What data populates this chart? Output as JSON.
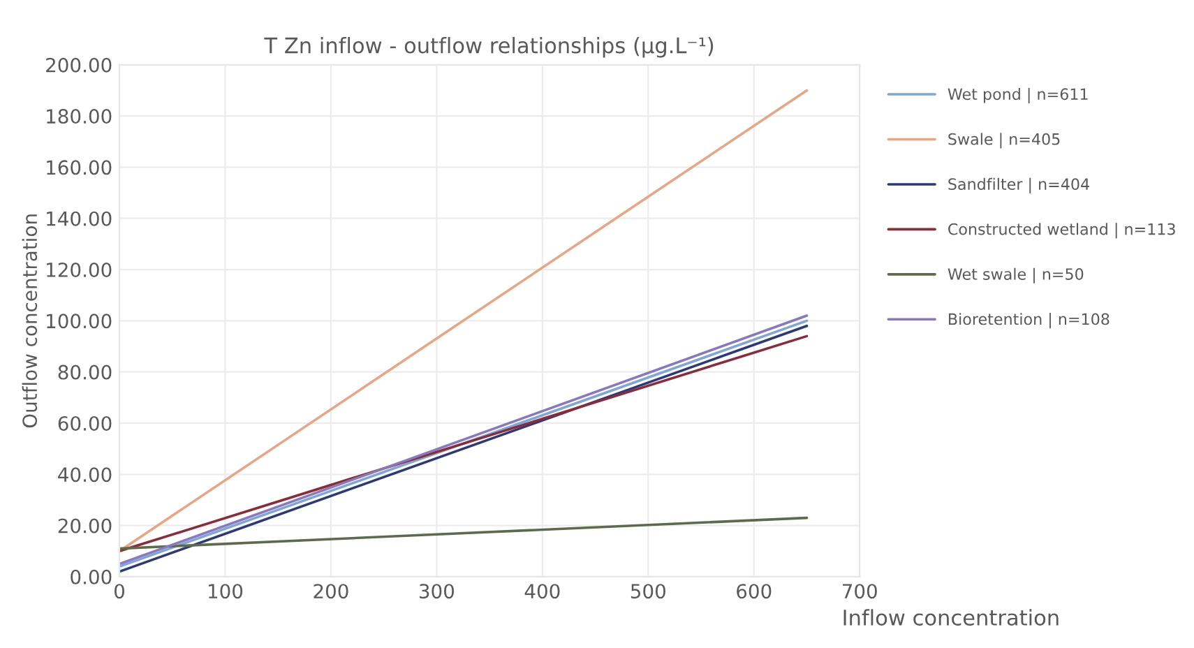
{
  "chart_data": {
    "type": "line",
    "title": "T Zn inflow - outflow relationships (µg.L⁻¹)",
    "xlabel": "Inflow concentration",
    "ylabel": "Outflow concentration",
    "xlim": [
      0,
      700
    ],
    "xticks": [
      0,
      100,
      200,
      300,
      400,
      500,
      600,
      700
    ],
    "ylim": [
      0,
      200
    ],
    "yticks": [
      {
        "value": 0,
        "label": "0.00"
      },
      {
        "value": 20,
        "label": "20.00"
      },
      {
        "value": 40,
        "label": "40.00"
      },
      {
        "value": 60,
        "label": "60.00"
      },
      {
        "value": 80,
        "label": "80.00"
      },
      {
        "value": 100,
        "label": "100.00"
      },
      {
        "value": 120,
        "label": "120.00"
      },
      {
        "value": 140,
        "label": "140.00"
      },
      {
        "value": 160,
        "label": "160.00"
      },
      {
        "value": 180,
        "label": "180.00"
      },
      {
        "value": 200,
        "label": "200.00"
      }
    ],
    "grid": true,
    "legend": "right",
    "marker": "none",
    "line_style": "solid",
    "x": [
      0,
      650
    ],
    "series": [
      {
        "name": "Wet pond | n=611",
        "color": "#7fa7d6",
        "values": [
          4,
          100
        ]
      },
      {
        "name": "Swale | n=405",
        "color": "#e8a684",
        "values": [
          10,
          190
        ]
      },
      {
        "name": "Sandfilter | n=404",
        "color": "#2e3a78",
        "values": [
          2,
          98
        ]
      },
      {
        "name": "Constructed wetland | n=113",
        "color": "#8b2c3a",
        "values": [
          10,
          94
        ]
      },
      {
        "name": "Wet swale | n=50",
        "color": "#5d6b4c",
        "values": [
          11,
          23
        ]
      },
      {
        "name": "Bioretention | n=108",
        "color": "#8878c0",
        "values": [
          5,
          102
        ]
      }
    ]
  }
}
